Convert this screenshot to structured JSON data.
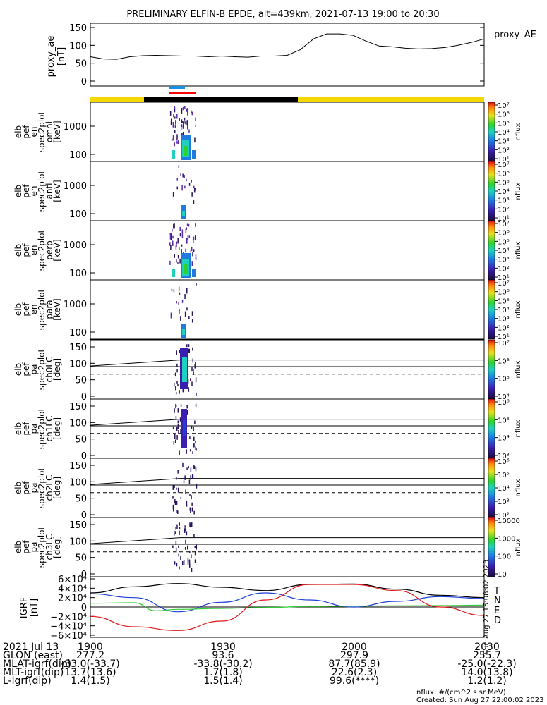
{
  "title": "PRELIMINARY ELFIN-B EPDE, alt=439km, 2021-07-13 19:00 to 20:30",
  "colors": {
    "bar_yellow": "#f5d800",
    "bar_black": "#000000",
    "bar_red": "#ff0000",
    "bar_blue": "#1e8fe0",
    "mag_black": "#000000",
    "mag_blue": "#1f3fd6",
    "mag_green": "#2ecc2e",
    "mag_red": "#dd1a1a"
  },
  "top_panel": {
    "ylabel": "proxy_ae\n[nT]",
    "legend": "proxy_AE",
    "ylim": [
      0,
      150
    ],
    "yticks": [
      "150",
      "100",
      "50",
      "0"
    ]
  },
  "spec_panels": [
    {
      "ylabel": [
        "elb",
        "pef",
        "en",
        "spec2plot",
        "omni",
        "[keV]"
      ],
      "yticks": [
        "1000",
        "100"
      ]
    },
    {
      "ylabel": [
        "elb",
        "pef",
        "en",
        "spec2plot",
        "anti",
        "[keV]"
      ],
      "yticks": [
        "1000",
        "100"
      ]
    },
    {
      "ylabel": [
        "elb",
        "pef",
        "en",
        "spec2plot",
        "perp",
        "[keV]"
      ],
      "yticks": [
        "1000",
        "100"
      ]
    },
    {
      "ylabel": [
        "elb",
        "pef",
        "en",
        "spec2plot",
        "para",
        "[keV]"
      ],
      "yticks": [
        "1000",
        "100"
      ]
    }
  ],
  "pa_panels": [
    {
      "ylabel": [
        "elb",
        "pef",
        "pa",
        "spec2plot",
        "ch0LC",
        "[deg]"
      ],
      "yticks": [
        "150",
        "100",
        "50",
        "0"
      ]
    },
    {
      "ylabel": [
        "elb",
        "pef",
        "pa",
        "spec2plot",
        "ch1LC",
        "[deg]"
      ],
      "yticks": [
        "150",
        "100",
        "50",
        "0"
      ]
    },
    {
      "ylabel": [
        "elb",
        "pef",
        "pa",
        "spec2plot",
        "ch2LC",
        "[deg]"
      ],
      "yticks": [
        "150",
        "100",
        "50",
        "0"
      ]
    },
    {
      "ylabel": [
        "elb",
        "pef",
        "pa",
        "spec2plot",
        "ch3LC",
        "[deg]"
      ],
      "yticks": [
        "150",
        "100",
        "50",
        "0"
      ]
    }
  ],
  "colorbars": [
    {
      "labels": [
        "10⁷",
        "10⁶",
        "10⁵",
        "10⁴",
        "10³",
        "10²",
        "10¹"
      ],
      "unit": "nflux"
    },
    {
      "labels": [
        "10⁷",
        "10⁶",
        "10⁵",
        "10⁴",
        "10³",
        "10²",
        "10¹"
      ],
      "unit": "nflux"
    },
    {
      "labels": [
        "10⁷",
        "10⁶",
        "10⁵",
        "10⁴",
        "10³",
        "10²",
        "10¹"
      ],
      "unit": "nflux"
    },
    {
      "labels": [
        "10⁷",
        "10⁶",
        "10⁵",
        "10⁴",
        "10³",
        "10²",
        "10¹"
      ],
      "unit": "nflux"
    },
    {
      "labels": [
        "10⁷",
        "10⁶",
        "10⁵",
        "10⁴"
      ],
      "unit": "nflux"
    },
    {
      "labels": [
        "10⁶",
        "10⁵",
        "10⁴",
        "10³"
      ],
      "unit": "nflux"
    },
    {
      "labels": [
        "10⁶",
        "10⁵",
        "10⁴",
        "10³",
        "10²"
      ],
      "unit": "nflux"
    },
    {
      "labels": [
        "10000",
        "1000",
        "100",
        "10"
      ],
      "unit": "nflux"
    }
  ],
  "mag_panel": {
    "ylabel": "IGRF\n[nT]",
    "yticks": [
      "6×10⁴",
      "4×10⁴",
      "2×10⁴",
      "0",
      "−2×10⁴",
      "−4×10⁴",
      "−6×10⁴"
    ],
    "legend": [
      "T",
      "N",
      "E",
      "D"
    ],
    "side_note": "Sun Aug 27 15:08:02 2023"
  },
  "footer": {
    "rows": [
      {
        "label": "2021 Jul 13",
        "values": [
          "1900",
          "1930",
          "2000",
          "2030"
        ]
      },
      {
        "label": "GLON (east)",
        "values": [
          "277.2",
          "93.6",
          "297.9",
          "255.7"
        ]
      },
      {
        "label": "MLAT-igrf(dip)",
        "values": [
          "-33.0(-33.7)",
          "-33.8(-30.2)",
          "87.7(85.9)",
          "-25.0(-22.3)"
        ]
      },
      {
        "label": "MLT-igrf(dip)",
        "values": [
          "13.7(13.6)",
          "1.7(1.8)",
          "22.6(2.3)",
          "14.0(13.8)"
        ]
      },
      {
        "label": "L-igrf(dip)",
        "values": [
          "1.4(1.5)",
          "1.5(1.4)",
          "99.6(****)",
          "1.2(1.2)"
        ]
      }
    ],
    "nflux_note": "nflux: #/(cm^2 s sr MeV)",
    "created": "Created: Sun Aug 27 22:00:02 2023"
  },
  "chart_data": [
    {
      "type": "line",
      "name": "proxy_AE",
      "xlabel": "",
      "x_range": [
        "19:00",
        "20:30"
      ],
      "ylim": [
        0,
        150
      ],
      "x_minutes": [
        0,
        3,
        6,
        9,
        12,
        15,
        18,
        21,
        24,
        27,
        30,
        33,
        36,
        39,
        42,
        45,
        48,
        51,
        54,
        57,
        60,
        63,
        66,
        69,
        72,
        75,
        78,
        81,
        84,
        87,
        90
      ],
      "values": [
        68,
        62,
        61,
        68,
        71,
        72,
        71,
        70,
        70,
        68,
        70,
        68,
        67,
        70,
        70,
        72,
        88,
        118,
        132,
        132,
        128,
        112,
        98,
        96,
        92,
        90,
        91,
        94,
        100,
        108,
        118
      ]
    },
    {
      "type": "heatmap",
      "name": "electron energy spectrograms (omni, anti, perp, para)",
      "ylim_keV": [
        60,
        7000
      ],
      "active_window": [
        "19:18",
        "19:24"
      ],
      "colorbar_range": [
        "1e1",
        "1e7"
      ]
    },
    {
      "type": "heatmap",
      "name": "pitch-angle spectrograms ch0LC-ch3LC",
      "ylim_deg": [
        0,
        180
      ],
      "active_window": [
        "19:18",
        "19:24"
      ],
      "reference_lines_deg": {
        "upper": 110,
        "lower": 90,
        "dashed": 67
      }
    },
    {
      "type": "line",
      "name": "IGRF field components",
      "ylim": [
        -60000,
        60000
      ],
      "series": [
        {
          "name": "T",
          "x_minutes": [
            0,
            10,
            20,
            30,
            40,
            50,
            60,
            70,
            80,
            90
          ],
          "values": [
            30000,
            43000,
            50000,
            42000,
            35000,
            48000,
            49000,
            38000,
            25000,
            20000
          ]
        },
        {
          "name": "N",
          "x_minutes": [
            0,
            10,
            20,
            30,
            40,
            50,
            60,
            70,
            80,
            90
          ],
          "values": [
            28000,
            20000,
            -10000,
            10000,
            30000,
            15000,
            0,
            12000,
            22000,
            18000
          ]
        },
        {
          "name": "E",
          "x_minutes": [
            0,
            10,
            15,
            20,
            30,
            40,
            50,
            60,
            70,
            80,
            90
          ],
          "values": [
            8000,
            9000,
            -8000,
            -5000,
            -3000,
            -1000,
            1000,
            2000,
            2500,
            3000,
            4000
          ]
        },
        {
          "name": "D",
          "x_minutes": [
            0,
            10,
            20,
            30,
            40,
            50,
            60,
            70,
            80,
            90
          ],
          "values": [
            -20000,
            -42000,
            -50000,
            -30000,
            15000,
            48000,
            48000,
            35000,
            0,
            -18000
          ]
        }
      ]
    }
  ]
}
